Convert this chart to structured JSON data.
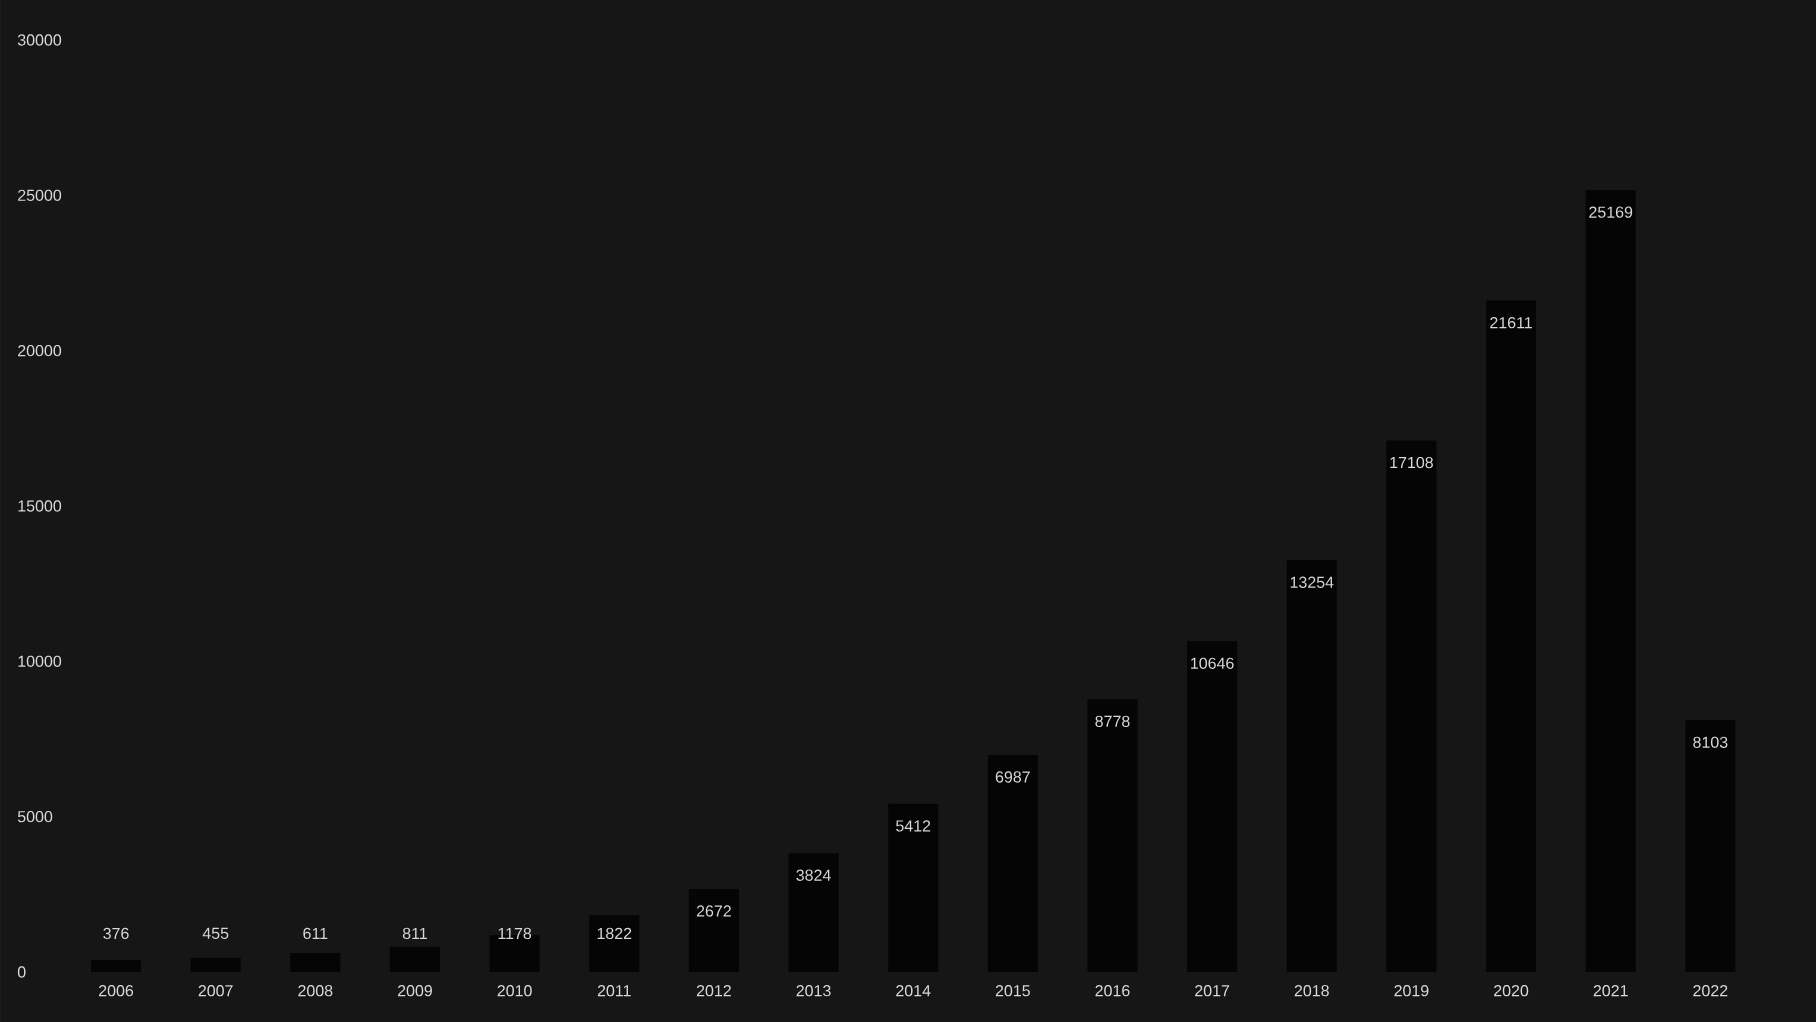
{
  "chart_data": {
    "type": "bar",
    "categories": [
      "2006",
      "2007",
      "2008",
      "2009",
      "2010",
      "2011",
      "2012",
      "2013",
      "2014",
      "2015",
      "2016",
      "2017",
      "2018",
      "2019",
      "2020",
      "2021",
      "2022"
    ],
    "values": [
      376,
      455,
      611,
      811,
      1178,
      1822,
      2672,
      3824,
      5412,
      6987,
      8778,
      10646,
      13254,
      17108,
      21611,
      25169,
      8103
    ],
    "color": "#050505",
    "ylim": [
      0,
      30000
    ],
    "yticks": [
      0,
      5000,
      10000,
      15000,
      20000,
      25000,
      30000
    ],
    "data_labels": true
  }
}
